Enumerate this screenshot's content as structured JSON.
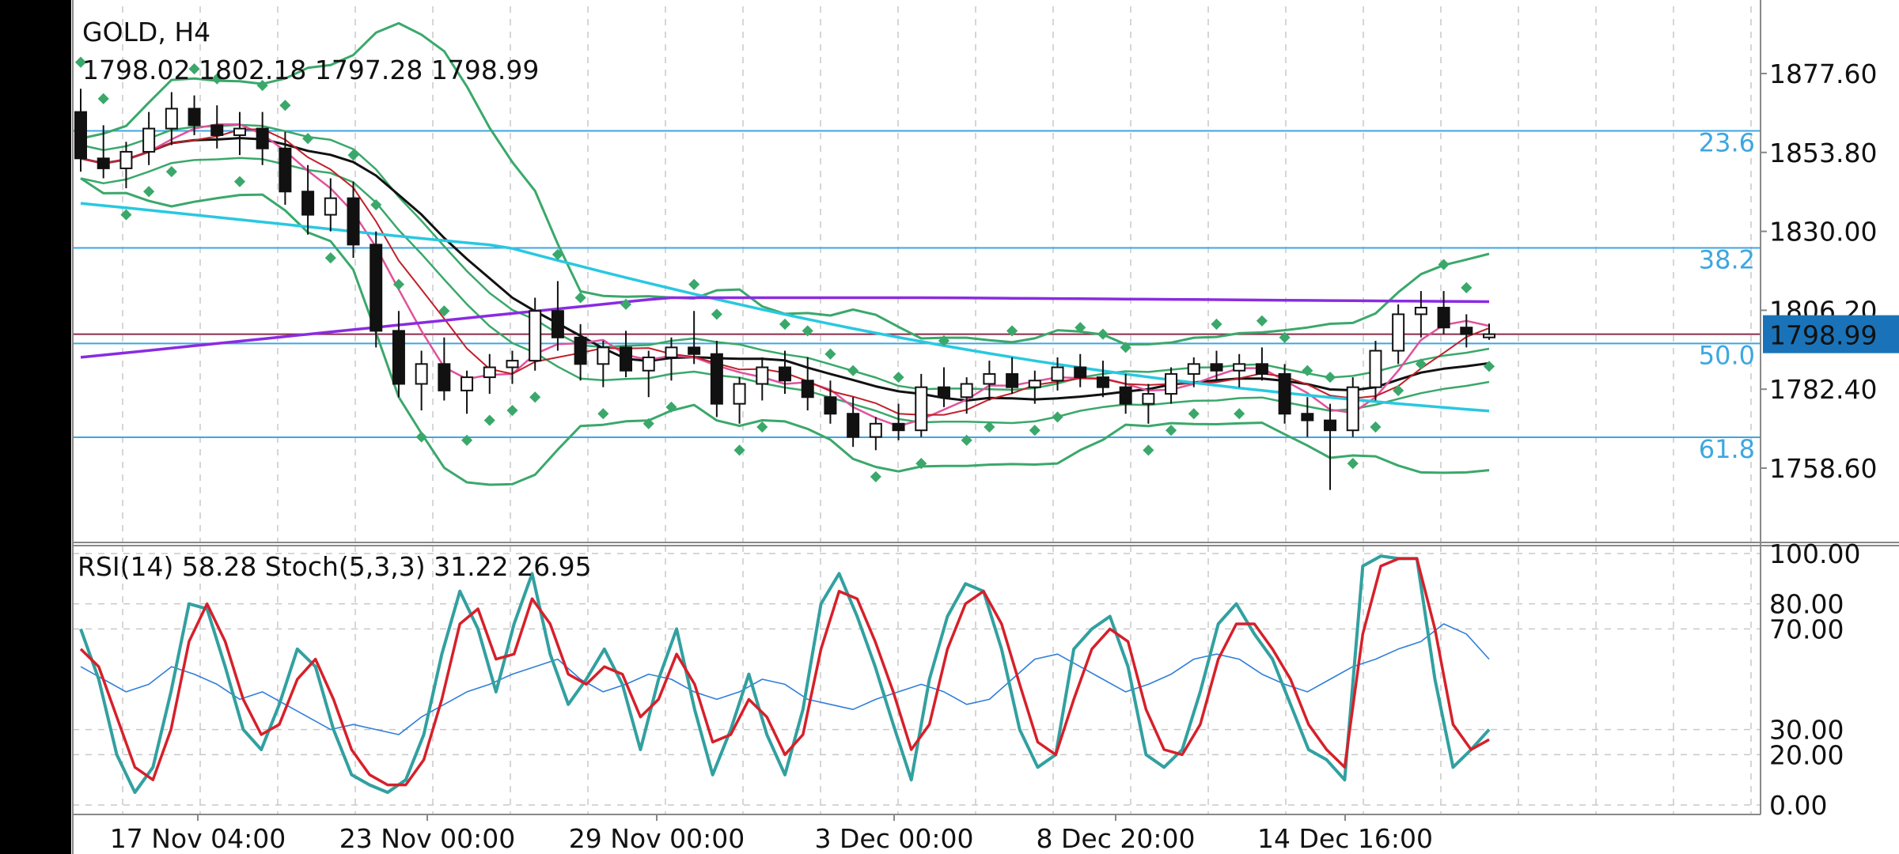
{
  "chart_data": {
    "type": "candlestick",
    "symbol_label": "GOLD, H4",
    "ohlc_label": "1798.02 1802.18 1797.28 1798.99",
    "current_price_label": "1798.99",
    "price_ylim": [
      1740,
      1895
    ],
    "price_ticks": [
      "1877.60",
      "1853.80",
      "1830.00",
      "1806.20",
      "1782.40",
      "1758.60"
    ],
    "price_tick_values": [
      1877.6,
      1853.8,
      1830.0,
      1806.2,
      1782.4,
      1758.6
    ],
    "current_price": 1798.99,
    "fib_levels": [
      {
        "label": "23.6",
        "value": 1860.3
      },
      {
        "label": "38.2",
        "value": 1825.0
      },
      {
        "label": "50.0",
        "value": 1796.2
      },
      {
        "label": "61.8",
        "value": 1767.9
      }
    ],
    "x_ticks": [
      "17 Nov 04:00",
      "23 Nov 00:00",
      "29 Nov 00:00",
      "3 Dec 00:00",
      "8 Dec 20:00",
      "14 Dec 16:00"
    ],
    "candles": [
      [
        1866,
        1873,
        1848,
        1852
      ],
      [
        1852,
        1862,
        1846,
        1849
      ],
      [
        1849,
        1857,
        1843,
        1854
      ],
      [
        1854,
        1866,
        1850,
        1861
      ],
      [
        1861,
        1872,
        1856,
        1867
      ],
      [
        1867,
        1871,
        1859,
        1862
      ],
      [
        1862,
        1868,
        1855,
        1859
      ],
      [
        1859,
        1866,
        1853,
        1861
      ],
      [
        1861,
        1866,
        1850,
        1855
      ],
      [
        1855,
        1860,
        1838,
        1842
      ],
      [
        1842,
        1850,
        1829,
        1835
      ],
      [
        1835,
        1846,
        1830,
        1840
      ],
      [
        1840,
        1845,
        1822,
        1826
      ],
      [
        1826,
        1830,
        1795,
        1800
      ],
      [
        1800,
        1806,
        1780,
        1784
      ],
      [
        1784,
        1794,
        1776,
        1790
      ],
      [
        1790,
        1798,
        1779,
        1782
      ],
      [
        1782,
        1788,
        1775,
        1786
      ],
      [
        1786,
        1793,
        1781,
        1789
      ],
      [
        1789,
        1794,
        1784,
        1791
      ],
      [
        1791,
        1810,
        1788,
        1806
      ],
      [
        1806,
        1815,
        1794,
        1798
      ],
      [
        1798,
        1802,
        1785,
        1790
      ],
      [
        1790,
        1797,
        1783,
        1795
      ],
      [
        1795,
        1800,
        1786,
        1788
      ],
      [
        1788,
        1794,
        1780,
        1792
      ],
      [
        1792,
        1798,
        1785,
        1795
      ],
      [
        1795,
        1806,
        1790,
        1793
      ],
      [
        1793,
        1797,
        1774,
        1778
      ],
      [
        1778,
        1786,
        1772,
        1784
      ],
      [
        1784,
        1792,
        1779,
        1789
      ],
      [
        1789,
        1794,
        1781,
        1785
      ],
      [
        1785,
        1792,
        1776,
        1780
      ],
      [
        1780,
        1785,
        1772,
        1775
      ],
      [
        1775,
        1780,
        1765,
        1768
      ],
      [
        1768,
        1774,
        1764,
        1772
      ],
      [
        1772,
        1778,
        1767,
        1770
      ],
      [
        1770,
        1787,
        1768,
        1783
      ],
      [
        1783,
        1789,
        1777,
        1780
      ],
      [
        1780,
        1786,
        1775,
        1784
      ],
      [
        1784,
        1791,
        1779,
        1787
      ],
      [
        1787,
        1792,
        1781,
        1783
      ],
      [
        1783,
        1788,
        1778,
        1785
      ],
      [
        1785,
        1792,
        1782,
        1789
      ],
      [
        1789,
        1793,
        1783,
        1786
      ],
      [
        1786,
        1791,
        1780,
        1783
      ],
      [
        1783,
        1787,
        1775,
        1778
      ],
      [
        1778,
        1784,
        1772,
        1781
      ],
      [
        1781,
        1789,
        1778,
        1787
      ],
      [
        1787,
        1792,
        1783,
        1790
      ],
      [
        1790,
        1794,
        1785,
        1788
      ],
      [
        1788,
        1793,
        1783,
        1790
      ],
      [
        1790,
        1795,
        1785,
        1787
      ],
      [
        1787,
        1790,
        1772,
        1775
      ],
      [
        1775,
        1780,
        1768,
        1773
      ],
      [
        1773,
        1778,
        1752,
        1770
      ],
      [
        1770,
        1786,
        1768,
        1783
      ],
      [
        1783,
        1797,
        1779,
        1794
      ],
      [
        1794,
        1808,
        1790,
        1805
      ],
      [
        1805,
        1812,
        1798,
        1807
      ],
      [
        1807,
        1812,
        1799,
        1801
      ],
      [
        1801,
        1805,
        1795,
        1799
      ],
      [
        1798.02,
        1802.18,
        1797.28,
        1798.99
      ]
    ],
    "rsi_label": "RSI(14) 58.28 Stoch(5,3,3) 31.22 26.95",
    "osc_ticks": [
      "100.00",
      "80.00",
      "70.00",
      "30.00",
      "20.00",
      "0.00"
    ],
    "osc_tick_values": [
      100,
      80,
      70,
      30,
      20,
      0
    ],
    "stoch_k": [
      70,
      50,
      20,
      5,
      15,
      45,
      80,
      78,
      55,
      30,
      22,
      40,
      62,
      55,
      30,
      12,
      8,
      5,
      10,
      28,
      60,
      85,
      70,
      45,
      72,
      92,
      60,
      40,
      50,
      62,
      48,
      22,
      50,
      70,
      38,
      12,
      30,
      52,
      28,
      12,
      38,
      80,
      92,
      75,
      55,
      32,
      10,
      50,
      75,
      88,
      85,
      62,
      30,
      15,
      20,
      62,
      70,
      75,
      55,
      20,
      15,
      22,
      45,
      72,
      80,
      68,
      58,
      40,
      22,
      18,
      10,
      95,
      99,
      98,
      98,
      50,
      15,
      22,
      30
    ],
    "stoch_d": [
      62,
      55,
      35,
      15,
      10,
      30,
      65,
      80,
      65,
      42,
      28,
      32,
      50,
      58,
      42,
      22,
      12,
      8,
      8,
      18,
      42,
      72,
      78,
      58,
      60,
      82,
      72,
      52,
      48,
      55,
      52,
      35,
      42,
      60,
      48,
      25,
      28,
      42,
      35,
      20,
      28,
      62,
      85,
      82,
      65,
      45,
      22,
      32,
      62,
      80,
      85,
      72,
      48,
      25,
      20,
      42,
      62,
      70,
      65,
      38,
      22,
      20,
      32,
      58,
      72,
      72,
      62,
      50,
      32,
      22,
      15,
      68,
      95,
      98,
      98,
      70,
      32,
      22,
      26
    ],
    "rsi": [
      55,
      50,
      45,
      48,
      55,
      52,
      48,
      42,
      45,
      40,
      35,
      30,
      32,
      30,
      28,
      35,
      40,
      45,
      48,
      52,
      55,
      58,
      50,
      45,
      48,
      52,
      50,
      45,
      42,
      45,
      50,
      48,
      42,
      40,
      38,
      42,
      45,
      48,
      45,
      40,
      42,
      50,
      58,
      60,
      55,
      50,
      45,
      48,
      52,
      58,
      60,
      58,
      52,
      48,
      45,
      50,
      55,
      58,
      62,
      65,
      72,
      68,
      58
    ]
  }
}
